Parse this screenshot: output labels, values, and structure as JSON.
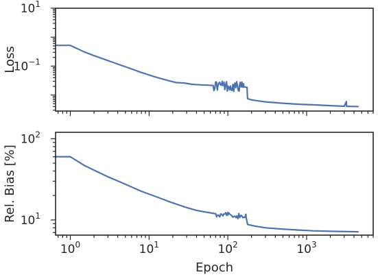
{
  "chart_data": [
    {
      "type": "line",
      "title": "",
      "xlabel": "",
      "ylabel": "Loss",
      "xscale": "log",
      "yscale": "log",
      "xlim": [
        0.65,
        7000
      ],
      "ylim": [
        0.0028,
        10
      ],
      "x_ticks": [
        {
          "value": 1,
          "base": "10",
          "exp": "0",
          "show_label": false
        },
        {
          "value": 10,
          "base": "10",
          "exp": "1",
          "show_label": false
        },
        {
          "value": 100,
          "base": "10",
          "exp": "2",
          "show_label": false
        },
        {
          "value": 1000,
          "base": "10",
          "exp": "3",
          "show_label": false
        }
      ],
      "y_ticks": [
        {
          "value": 0.1,
          "base": "10",
          "exp": "−1"
        },
        {
          "value": 10,
          "base": "10",
          "exp": "1"
        }
      ],
      "grid": false,
      "series": [
        {
          "color": "#4c72b0",
          "points": [
            [
              0.65,
              0.52
            ],
            [
              1.0,
              0.52
            ],
            [
              1.5,
              0.31
            ],
            [
              2,
              0.23
            ],
            [
              3,
              0.155
            ],
            [
              5,
              0.095
            ],
            [
              8,
              0.06
            ],
            [
              12,
              0.042
            ],
            [
              18,
              0.031
            ],
            [
              22,
              0.027
            ],
            [
              28,
              0.026
            ],
            [
              35,
              0.0235
            ],
            [
              45,
              0.0225
            ],
            [
              55,
              0.022
            ],
            [
              65,
              0.0215
            ],
            [
              75,
              0.0215
            ],
            [
              85,
              0.0215
            ],
            [
              100,
              0.0205
            ],
            [
              120,
              0.02
            ],
            [
              140,
              0.0195
            ],
            [
              160,
              0.019
            ],
            [
              175,
              0.0185
            ],
            [
              178,
              0.0075
            ],
            [
              200,
              0.0068
            ],
            [
              300,
              0.0058
            ],
            [
              500,
              0.0052
            ],
            [
              800,
              0.0048
            ],
            [
              1200,
              0.0046
            ],
            [
              2000,
              0.0043
            ],
            [
              3000,
              0.0041
            ],
            [
              4500,
              0.004
            ]
          ],
          "noise": [
            {
              "from": 60,
              "to": 170,
              "amplitude": 0.18,
              "step": 1.025
            },
            {
              "from": 3100,
              "to": 3300,
              "amplitude": 0.5,
              "step": 1.01
            }
          ]
        }
      ]
    },
    {
      "type": "line",
      "title": "",
      "xlabel": "Epoch",
      "ylabel": "Rel. Bias [%]",
      "xscale": "log",
      "yscale": "log",
      "xlim": [
        0.65,
        7000
      ],
      "ylim": [
        6.5,
        120
      ],
      "x_ticks": [
        {
          "value": 1,
          "base": "10",
          "exp": "0",
          "show_label": true
        },
        {
          "value": 10,
          "base": "10",
          "exp": "1",
          "show_label": true
        },
        {
          "value": 100,
          "base": "10",
          "exp": "2",
          "show_label": true
        },
        {
          "value": 1000,
          "base": "10",
          "exp": "3",
          "show_label": true
        }
      ],
      "y_ticks": [
        {
          "value": 10,
          "base": "10",
          "exp": "1"
        },
        {
          "value": 100,
          "base": "10",
          "exp": "2"
        }
      ],
      "grid": false,
      "series": [
        {
          "color": "#4c72b0",
          "points": [
            [
              0.65,
              60
            ],
            [
              1.0,
              60
            ],
            [
              1.5,
              47
            ],
            [
              2,
              41
            ],
            [
              3,
              34
            ],
            [
              5,
              27.5
            ],
            [
              8,
              22.5
            ],
            [
              12,
              19.5
            ],
            [
              18,
              16.8
            ],
            [
              22,
              15.7
            ],
            [
              30,
              14.2
            ],
            [
              40,
              13.1
            ],
            [
              50,
              12.6
            ],
            [
              70,
              11.9
            ],
            [
              100,
              11.5
            ],
            [
              130,
              11.2
            ],
            [
              170,
              10.9
            ],
            [
              178,
              8.8
            ],
            [
              220,
              8.4
            ],
            [
              300,
              8.0
            ],
            [
              500,
              7.7
            ],
            [
              800,
              7.5
            ],
            [
              1200,
              7.35
            ],
            [
              2000,
              7.25
            ],
            [
              3000,
              7.2
            ],
            [
              4500,
              7.15
            ]
          ],
          "noise": [
            {
              "from": 60,
              "to": 170,
              "amplitude": 0.035,
              "step": 1.03
            }
          ]
        }
      ]
    }
  ]
}
